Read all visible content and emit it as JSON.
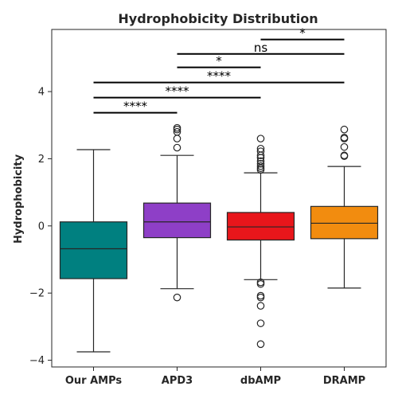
{
  "chart_data": {
    "type": "box",
    "title": "Hydrophobicity Distribution",
    "xlabel": "",
    "ylabel": "Hydrophobicity",
    "ylim": [
      -4.2,
      5.85
    ],
    "yticks": [
      -4,
      -2,
      0,
      2,
      4
    ],
    "ytick_labels": [
      "−4",
      "−2",
      "0",
      "2",
      "4"
    ],
    "grid": false,
    "categories": [
      "Our AMPs",
      "APD3",
      "dbAMP",
      "DRAMP"
    ],
    "colors": [
      "#008080",
      "#8e3fc7",
      "#e8161b",
      "#f28c0f"
    ],
    "boxes": [
      {
        "whisker_low": -3.75,
        "q1": -1.57,
        "median": -0.68,
        "q3": 0.12,
        "whisker_high": 2.27,
        "outliers": []
      },
      {
        "whisker_low": -1.87,
        "q1": -0.35,
        "median": 0.12,
        "q3": 0.68,
        "whisker_high": 2.1,
        "outliers": [
          2.33,
          2.6,
          2.8,
          2.87,
          2.92,
          -2.13
        ]
      },
      {
        "whisker_low": -1.6,
        "q1": -0.42,
        "median": -0.03,
        "q3": 0.4,
        "whisker_high": 1.58,
        "outliers": [
          1.67,
          1.72,
          1.78,
          1.85,
          1.93,
          2.03,
          2.1,
          2.22,
          2.3,
          2.6,
          -1.68,
          -1.73,
          -2.08,
          -2.13,
          -2.38,
          -2.9,
          -3.52
        ]
      },
      {
        "whisker_low": -1.85,
        "q1": -0.38,
        "median": 0.08,
        "q3": 0.58,
        "whisker_high": 1.77,
        "outliers": [
          2.08,
          2.1,
          2.35,
          2.6,
          2.63,
          2.87
        ]
      }
    ],
    "annotations": [
      {
        "from": 0,
        "to": 1,
        "y": 3.37,
        "label": "****"
      },
      {
        "from": 0,
        "to": 2,
        "y": 3.82,
        "label": "****"
      },
      {
        "from": 0,
        "to": 3,
        "y": 4.27,
        "label": "****"
      },
      {
        "from": 1,
        "to": 2,
        "y": 4.72,
        "label": "*"
      },
      {
        "from": 1,
        "to": 3,
        "y": 5.12,
        "label": "ns"
      },
      {
        "from": 2,
        "to": 3,
        "y": 5.55,
        "label": "*"
      }
    ]
  }
}
